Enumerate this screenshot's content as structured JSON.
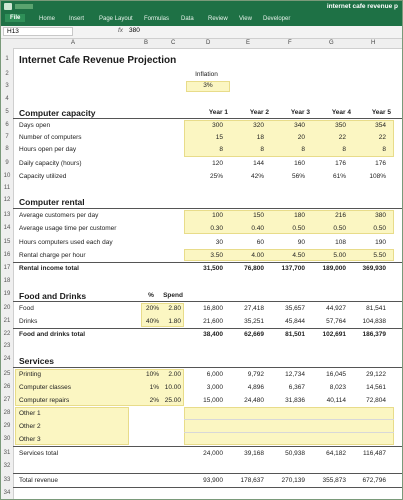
{
  "app": {
    "title": "internet cafe revenue p"
  },
  "ribbon": {
    "tabs": [
      "File",
      "Home",
      "Insert",
      "Page Layout",
      "Formulas",
      "Data",
      "Review",
      "View",
      "Developer"
    ]
  },
  "formula_bar": {
    "name_box": "H13",
    "fx": "fx",
    "value": "380"
  },
  "columns": [
    "A",
    "B",
    "C",
    "D",
    "E",
    "F",
    "G",
    "H"
  ],
  "rows": [
    "1",
    "2",
    "3",
    "4",
    "5",
    "6",
    "7",
    "8",
    "9",
    "10",
    "11",
    "12",
    "13",
    "14",
    "15",
    "16",
    "17",
    "18",
    "19",
    "20",
    "21",
    "22",
    "23",
    "24",
    "25",
    "26",
    "27",
    "28",
    "29",
    "30",
    "31",
    "32",
    "33",
    "34"
  ],
  "sheet": {
    "title": "Internet Cafe Revenue Projection",
    "inflation_label": "Inflation",
    "inflation_value": "3%",
    "years": [
      "Year 1",
      "Year 2",
      "Year 3",
      "Year 4",
      "Year 5"
    ],
    "computer_capacity": {
      "heading": "Computer capacity",
      "rows": [
        {
          "label": "Days open",
          "values": [
            "300",
            "320",
            "340",
            "350",
            "354"
          ]
        },
        {
          "label": "Number of computers",
          "values": [
            "15",
            "18",
            "20",
            "22",
            "22"
          ]
        },
        {
          "label": "Hours open per day",
          "values": [
            "8",
            "8",
            "8",
            "8",
            "8"
          ]
        },
        {
          "label": "Daily capacity (hours)",
          "values": [
            "120",
            "144",
            "160",
            "176",
            "176"
          ]
        },
        {
          "label": "Capacity utilized",
          "values": [
            "25%",
            "42%",
            "56%",
            "61%",
            "108%"
          ]
        }
      ]
    },
    "computer_rental": {
      "heading": "Computer rental",
      "rows": [
        {
          "label": "Average customers per day",
          "values": [
            "100",
            "150",
            "180",
            "216",
            "380"
          ]
        },
        {
          "label": "Average usage time per customer",
          "values": [
            "0.30",
            "0.40",
            "0.50",
            "0.50",
            "0.50"
          ]
        },
        {
          "label": "Hours computers used each day",
          "values": [
            "30",
            "60",
            "90",
            "108",
            "190"
          ]
        },
        {
          "label": "Rental charge per hour",
          "values": [
            "3.50",
            "4.00",
            "4.50",
            "5.00",
            "5.50"
          ]
        }
      ],
      "total_label": "Rental income total",
      "total_values": [
        "31,500",
        "76,800",
        "137,700",
        "189,000",
        "369,930"
      ]
    },
    "food_drinks": {
      "heading": "Food and Drinks",
      "pct_header": "%",
      "spend_header": "Spend",
      "rows": [
        {
          "label": "Food",
          "pct": "20%",
          "spend": "2.80",
          "values": [
            "16,800",
            "27,418",
            "35,657",
            "44,927",
            "81,541"
          ]
        },
        {
          "label": "Drinks",
          "pct": "40%",
          "spend": "1.80",
          "values": [
            "21,600",
            "35,251",
            "45,844",
            "57,764",
            "104,838"
          ]
        }
      ],
      "total_label": "Food and drinks total",
      "total_values": [
        "38,400",
        "62,669",
        "81,501",
        "102,691",
        "186,379"
      ]
    },
    "services": {
      "heading": "Services",
      "rows": [
        {
          "label": "Printing",
          "pct": "10%",
          "spend": "2.00",
          "values": [
            "6,000",
            "9,792",
            "12,734",
            "16,045",
            "29,122"
          ]
        },
        {
          "label": "Computer classes",
          "pct": "1%",
          "spend": "10.00",
          "values": [
            "3,000",
            "4,896",
            "6,367",
            "8,023",
            "14,561"
          ]
        },
        {
          "label": "Computer repairs",
          "pct": "2%",
          "spend": "25.00",
          "values": [
            "15,000",
            "24,480",
            "31,836",
            "40,114",
            "72,804"
          ]
        },
        {
          "label": "Other 1",
          "pct": "",
          "spend": "",
          "values": [
            "",
            "",
            "",
            "",
            ""
          ]
        },
        {
          "label": "Other 2",
          "pct": "",
          "spend": "",
          "values": [
            "",
            "",
            "",
            "",
            ""
          ]
        },
        {
          "label": "Other 3",
          "pct": "",
          "spend": "",
          "values": [
            "",
            "",
            "",
            "",
            ""
          ]
        }
      ],
      "total_label": "Services total",
      "total_values": [
        "24,000",
        "39,168",
        "50,938",
        "64,182",
        "116,487"
      ]
    },
    "total_revenue_label": "Total revenue",
    "total_revenue_values": [
      "93,900",
      "178,637",
      "270,139",
      "355,873",
      "672,796"
    ]
  }
}
